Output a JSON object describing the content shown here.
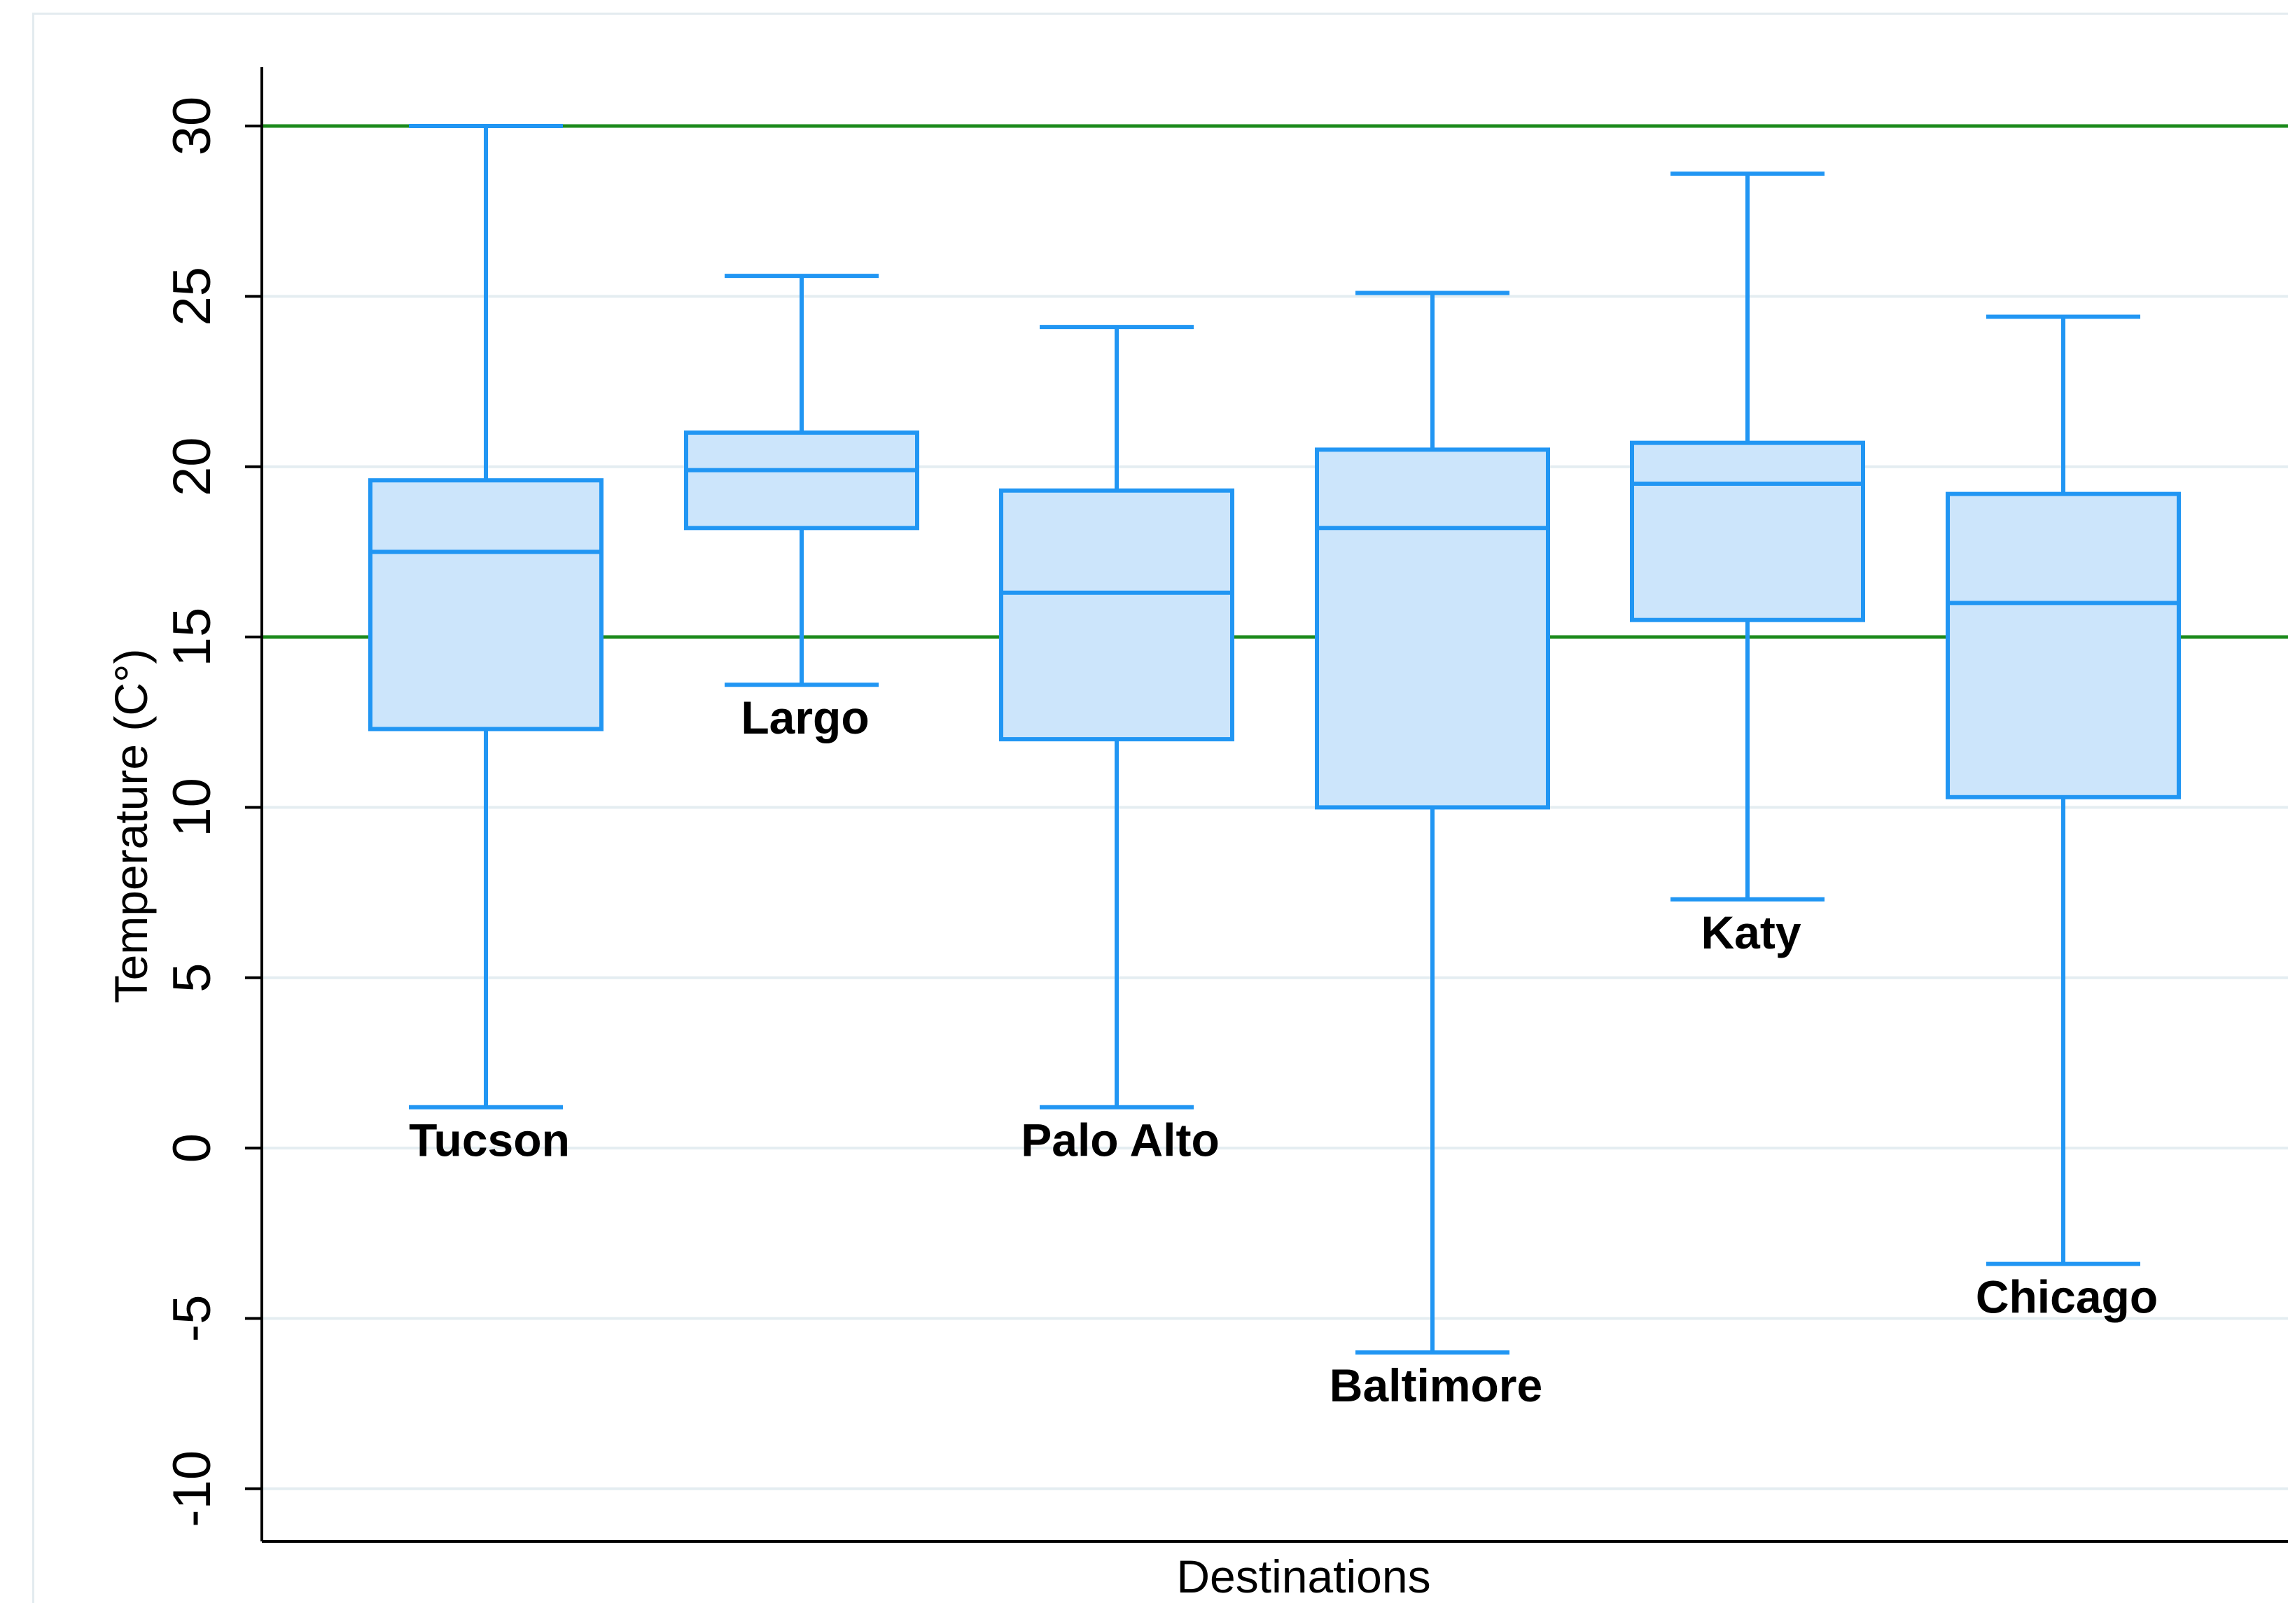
{
  "chart_data": {
    "type": "box",
    "ylabel": "Temperature (C°)",
    "xlabel": "Destinations",
    "ylim": [
      -11.5,
      32
    ],
    "yticks": [
      30,
      25,
      20,
      15,
      10,
      5,
      0,
      -5,
      -10
    ],
    "grid": true,
    "reference_lines": [
      30,
      15
    ],
    "colors": {
      "box_fill": "#cce5fb",
      "box_stroke": "#2196f3",
      "reference_line": "#1b8a1b",
      "gridline": "#e4edf1",
      "axis": "#000000"
    },
    "series": [
      {
        "name": "Tucson",
        "min": 1.2,
        "q1": 12.3,
        "median": 17.5,
        "q3": 19.6,
        "max": 30.0
      },
      {
        "name": "Largo",
        "min": 13.6,
        "q1": 18.2,
        "median": 19.9,
        "q3": 21.0,
        "max": 25.6
      },
      {
        "name": "Palo Alto",
        "min": 1.2,
        "q1": 12.0,
        "median": 16.3,
        "q3": 19.3,
        "max": 24.1
      },
      {
        "name": "Baltimore",
        "min": -6.0,
        "q1": 10.0,
        "median": 18.2,
        "q3": 20.5,
        "max": 25.1
      },
      {
        "name": "Katy",
        "min": 7.3,
        "q1": 15.5,
        "median": 19.5,
        "q3": 20.7,
        "max": 28.6
      },
      {
        "name": "Chicago",
        "min": -3.4,
        "q1": 10.3,
        "median": 16.0,
        "q3": 19.2,
        "max": 24.4
      }
    ]
  }
}
